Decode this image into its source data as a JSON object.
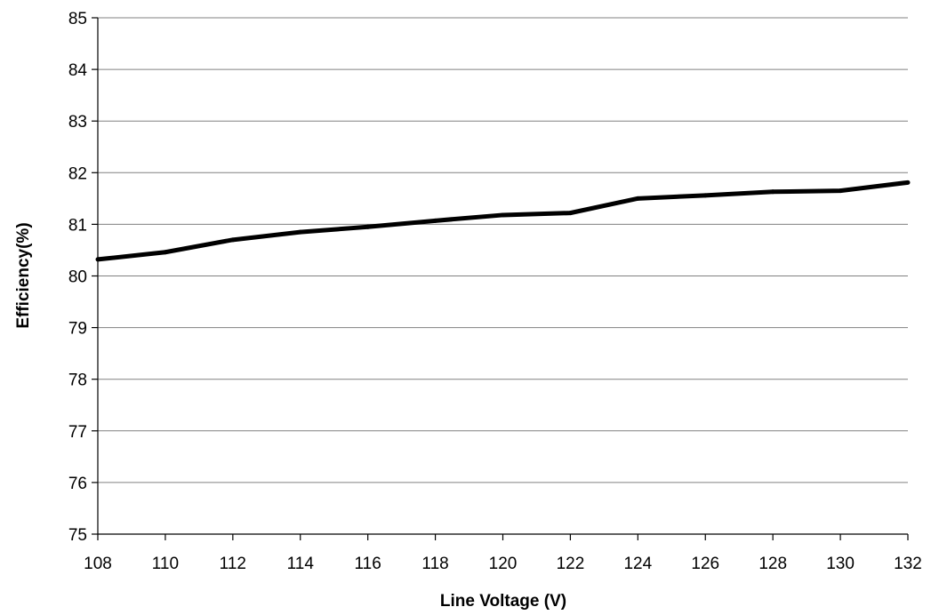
{
  "chart_data": {
    "type": "line",
    "title": "",
    "xlabel": "Line Voltage (V)",
    "ylabel": "Efficiency(%)",
    "x": [
      108,
      110,
      112,
      114,
      116,
      118,
      120,
      122,
      124,
      126,
      128,
      130,
      132
    ],
    "series": [
      {
        "values": [
          80.32,
          80.46,
          80.7,
          80.85,
          80.95,
          81.07,
          81.18,
          81.22,
          81.5,
          81.56,
          81.63,
          81.65,
          81.81
        ],
        "color": "#000000"
      }
    ],
    "xlim": [
      108,
      132
    ],
    "ylim": [
      75,
      85
    ],
    "x_ticks": [
      "108",
      "110",
      "112",
      "114",
      "116",
      "118",
      "120",
      "122",
      "124",
      "126",
      "128",
      "130",
      "132"
    ],
    "y_ticks": [
      "75",
      "76",
      "77",
      "78",
      "79",
      "80",
      "81",
      "82",
      "83",
      "84",
      "85"
    ],
    "grid": "horizontal",
    "legend": "none"
  }
}
